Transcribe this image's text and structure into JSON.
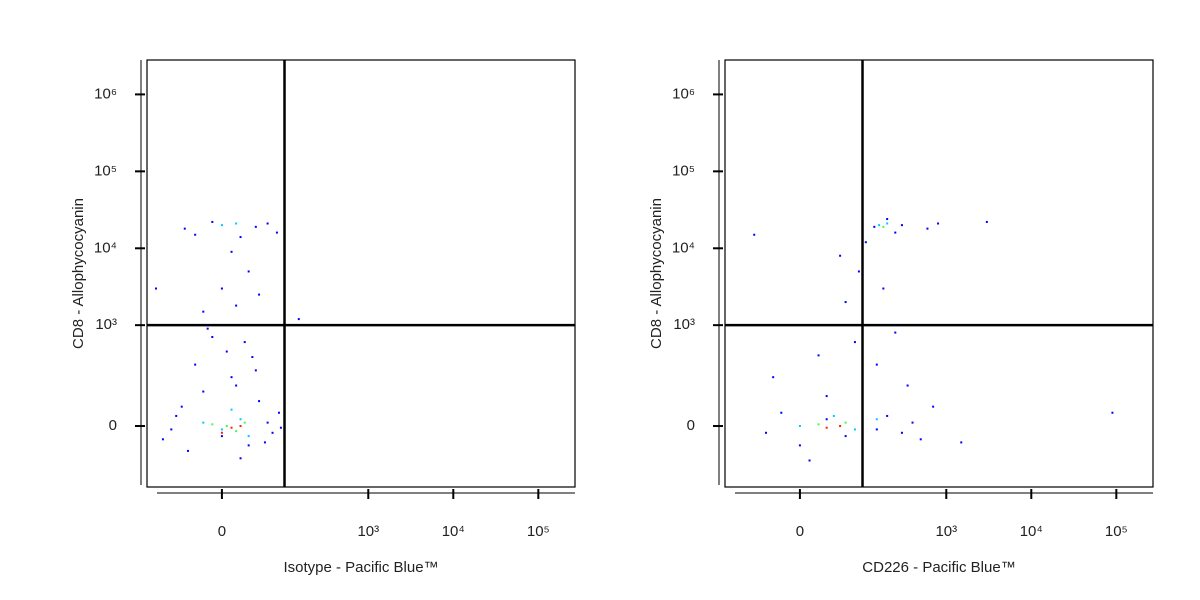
{
  "chart_data": [
    {
      "type": "scatter",
      "xlabel": "Isotype - Pacific Blue™",
      "ylabel": "CD8 - Allophycocyanin",
      "xlim": [
        -142,
        270000
      ],
      "ylim": [
        -296,
        2800000
      ],
      "xticks": [
        0,
        {
          "value": 1000,
          "label": "10³"
        },
        {
          "value": 10000,
          "label": "10⁴"
        },
        {
          "value": 100000,
          "label": "10⁵"
        }
      ],
      "yticks": [
        0,
        {
          "value": 1000,
          "label": "10³"
        },
        {
          "value": 10000,
          "label": "10⁴"
        },
        {
          "value": 100000,
          "label": "10⁵"
        },
        {
          "value": 1000000,
          "label": "10⁶"
        }
      ],
      "gate": {
        "x": 100,
        "y": 1000
      },
      "series": [
        {
          "color": "#0000ff",
          "x": [
            -90,
            -60,
            -40,
            -20,
            0,
            10,
            30,
            45,
            60,
            70,
            85,
            -70,
            -30,
            5,
            25,
            -10,
            40,
            15,
            -50,
            55,
            90,
            20,
            -15,
            35,
            -30,
            -10,
            20,
            40,
            60,
            -45,
            10,
            30,
            0,
            15,
            45,
            -20,
            80,
            -110,
            150
          ],
          "y": [
            -40,
            30,
            -80,
            120,
            -30,
            200,
            -60,
            80,
            10,
            -20,
            40,
            -10,
            300,
            450,
            600,
            700,
            250,
            150,
            60,
            -50,
            -5,
            -110,
            900,
            380,
            15000,
            22000,
            14000,
            19000,
            21000,
            18000,
            9000,
            5000,
            3000,
            1800,
            2500,
            1500,
            16000,
            3000,
            1200
          ]
        },
        {
          "color": "#00c8ff",
          "x": [
            0,
            20,
            -20,
            30,
            10,
            0,
            15
          ],
          "y": [
            -10,
            20,
            10,
            -30,
            50,
            20000,
            21000
          ]
        },
        {
          "color": "#40ff40",
          "x": [
            5,
            15,
            -10,
            25
          ],
          "y": [
            0,
            -15,
            5,
            10
          ]
        },
        {
          "color": "#ff2000",
          "x": [
            10,
            0,
            20
          ],
          "y": [
            -5,
            -20,
            0
          ]
        }
      ]
    },
    {
      "type": "scatter",
      "xlabel": "CD226 - Pacific Blue™",
      "ylabel": "CD8 - Allophycocyanin",
      "xlim": [
        -142,
        270000
      ],
      "ylim": [
        -296,
        2800000
      ],
      "xticks": [
        0,
        {
          "value": 1000,
          "label": "10³"
        },
        {
          "value": 10000,
          "label": "10⁴"
        },
        {
          "value": 100000,
          "label": "10⁵"
        }
      ],
      "yticks": [
        0,
        {
          "value": 1000,
          "label": "10³"
        },
        {
          "value": 10000,
          "label": "10⁴"
        },
        {
          "value": 100000,
          "label": "10⁵"
        },
        {
          "value": 1000000,
          "label": "10⁶"
        }
      ],
      "gate": {
        "x": 100,
        "y": 1000
      },
      "series": [
        {
          "color": "#0000ff",
          "x": [
            -40,
            -20,
            0,
            30,
            60,
            100,
            150,
            200,
            300,
            400,
            500,
            700,
            -30,
            20,
            80,
            150,
            250,
            350,
            120,
            60,
            90,
            110,
            140,
            200,
            250,
            300,
            600,
            800,
            50,
            180,
            3000,
            1500,
            90000,
            -60,
            30,
            10
          ],
          "y": [
            -20,
            40,
            -60,
            20,
            -30,
            50,
            -10,
            30,
            -20,
            10,
            -40,
            60,
            200,
            400,
            600,
            300,
            800,
            150,
            1000,
            2000,
            5000,
            12000,
            19000,
            24000,
            16000,
            20000,
            18000,
            21000,
            8000,
            3000,
            22000,
            -50,
            40,
            15000,
            100,
            -120
          ]
        },
        {
          "color": "#00c8ff",
          "x": [
            0,
            40,
            80,
            150,
            160,
            200
          ],
          "y": [
            0,
            30,
            -10,
            20,
            20000,
            21000
          ]
        },
        {
          "color": "#40ff40",
          "x": [
            20,
            60,
            100,
            180
          ],
          "y": [
            5,
            10,
            0,
            19000
          ]
        },
        {
          "color": "#ff2000",
          "x": [
            30,
            50
          ],
          "y": [
            -5,
            0
          ]
        }
      ]
    }
  ]
}
